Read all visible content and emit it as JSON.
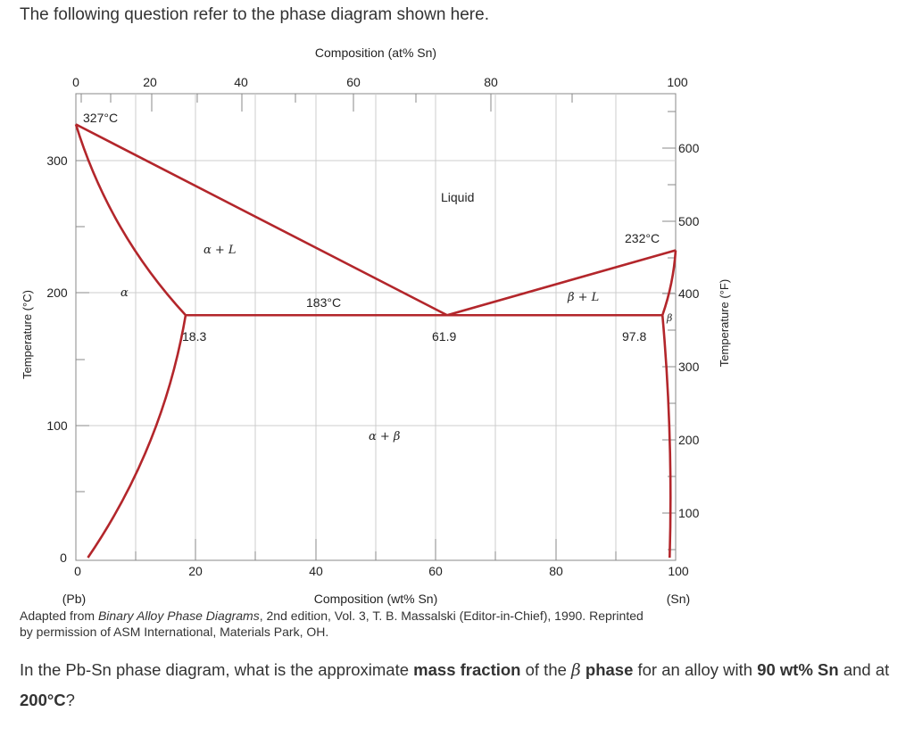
{
  "intro_text": "The following question refer to the phase diagram shown here.",
  "caption": {
    "line1_prefix": "Adapted from ",
    "line1_italic": "Binary Alloy Phase Diagrams",
    "line1_suffix": ", 2nd edition, Vol. 3, T. B. Massalski (Editor-in-Chief), 1990. Reprinted",
    "line2": "by permission of ASM International, Materials Park, OH."
  },
  "question": {
    "part1": "In the Pb-Sn phase diagram, what is the approximate ",
    "bold1": "mass fraction",
    "part2": " of the ",
    "beta": "β",
    "bold2": " phase",
    "part3": " for an alloy with ",
    "bold3": "90 wt% Sn",
    "part4": " and at ",
    "bold4": "200°C",
    "part5": "?"
  },
  "colors": {
    "phase_line": "#b3262b",
    "grid": "#cccccc",
    "axis": "#888888"
  },
  "chart_data": {
    "type": "phase-diagram",
    "system": "Pb-Sn",
    "x_bottom": {
      "label": "Composition (wt% Sn)",
      "range": [
        0,
        100
      ],
      "ticks": [
        0,
        20,
        40,
        60,
        80,
        100
      ]
    },
    "x_top": {
      "label": "Composition (at% Sn)",
      "tick_labels": [
        "0",
        "20",
        "40",
        "60",
        "80",
        "100"
      ]
    },
    "y_left": {
      "label": "Temperature (°C)",
      "range": [
        0,
        327
      ],
      "ticks": [
        0,
        100,
        200,
        300
      ]
    },
    "y_right": {
      "label": "Temperature (°F)",
      "ticks": [
        100,
        200,
        300,
        400,
        500,
        600
      ]
    },
    "end_labels": {
      "left": "(Pb)",
      "right": "(Sn)"
    },
    "grid": true,
    "regions": [
      "Liquid",
      "α + L",
      "β + L",
      "α + β",
      "α",
      "β"
    ],
    "annotations": {
      "pb_melting": "327°C",
      "sn_melting": "232°C",
      "eutectic_temp": "183°C",
      "alpha_max_solubility": "18.3",
      "eutectic_composition": "61.9",
      "beta_max_solubility": "97.8"
    },
    "key_points": {
      "pb_melting_point": {
        "x": 0,
        "y": 327
      },
      "sn_melting_point": {
        "x": 100,
        "y": 232
      },
      "eutectic_point": {
        "x": 61.9,
        "y": 183
      },
      "alpha_solubility_limit": {
        "x": 18.3,
        "y": 183
      },
      "beta_solubility_limit": {
        "x": 97.8,
        "y": 183
      }
    },
    "lines": {
      "liquidus": [
        {
          "x": 0,
          "y": 327
        },
        {
          "x": 61.9,
          "y": 183
        },
        {
          "x": 100,
          "y": 232
        }
      ],
      "alpha_solidus": [
        {
          "x": 0,
          "y": 327
        },
        {
          "x": 18.3,
          "y": 183
        }
      ],
      "alpha_solvus": [
        {
          "x": 18.3,
          "y": 183
        },
        {
          "x": 2,
          "y": 0
        }
      ],
      "eutectic_isotherm": [
        {
          "x": 18.3,
          "y": 183
        },
        {
          "x": 97.8,
          "y": 183
        }
      ],
      "beta_solidus": [
        {
          "x": 97.8,
          "y": 183
        },
        {
          "x": 100,
          "y": 232
        }
      ],
      "beta_solvus": [
        {
          "x": 97.8,
          "y": 183
        },
        {
          "x": 99,
          "y": 0
        }
      ]
    }
  }
}
